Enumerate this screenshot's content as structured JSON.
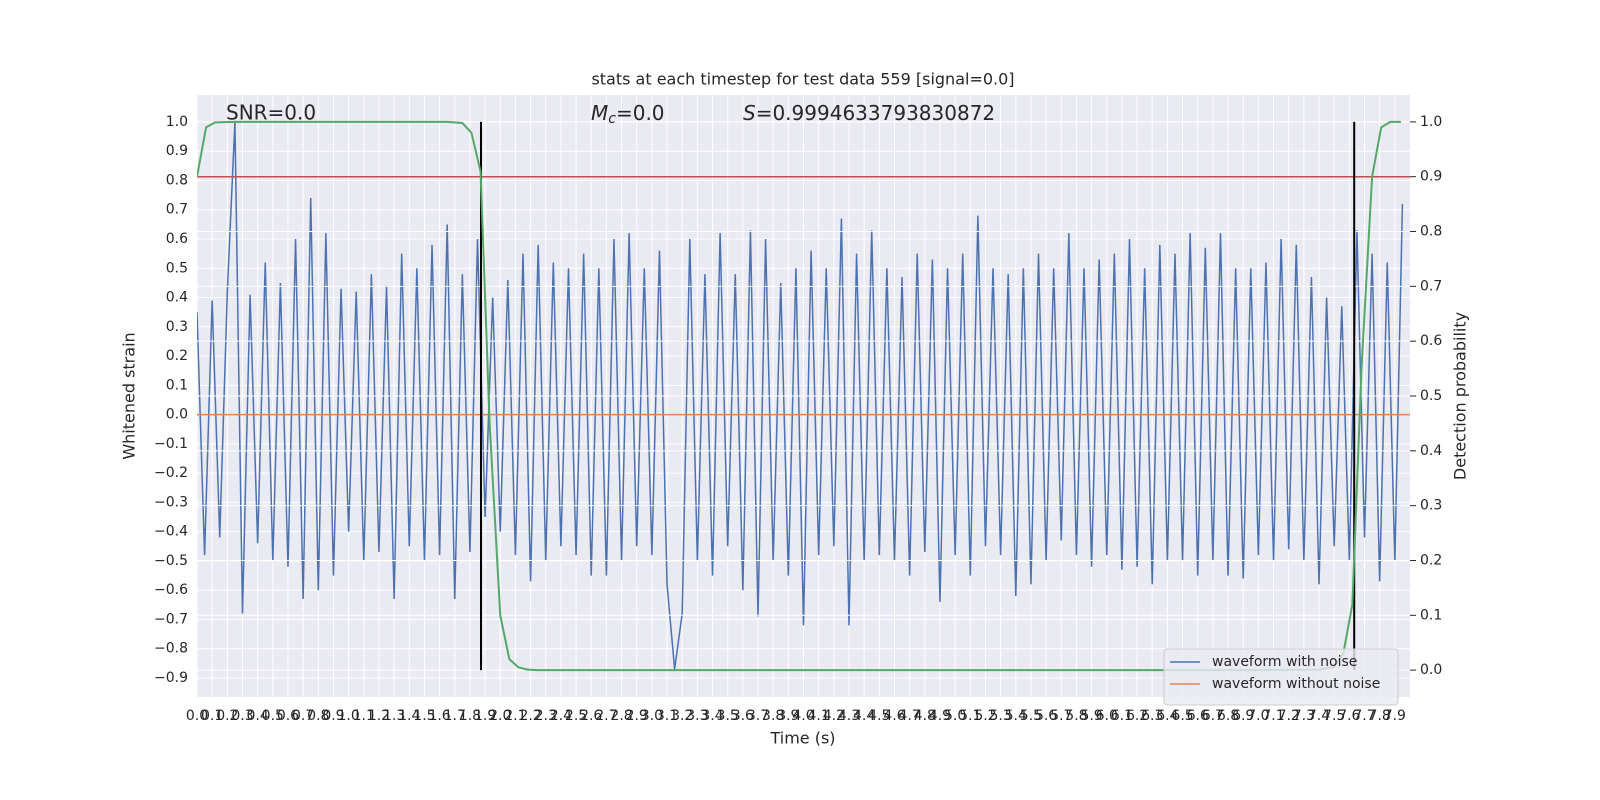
{
  "chart_data": {
    "type": "line",
    "title": "stats at each timestep for test data 559 [signal=0.0]",
    "xlabel": "Time (s)",
    "ylabel": "Whitened strain",
    "y2label": "Detection probability",
    "annotations": {
      "snr": "SNR=0.0",
      "mc": {
        "symbol": "M",
        "subscript": "c",
        "text": "=0.0"
      },
      "s": {
        "symbol": "S",
        "text": "=0.9994633793830872"
      }
    },
    "xlim": [
      0,
      8
    ],
    "ylim": [
      -0.965,
      1.092
    ],
    "y2lim": [
      -0.049,
      1.049
    ],
    "grid": true,
    "legend": "lower right",
    "xticks": [
      {
        "value": 0,
        "label": "0.0"
      },
      0.1,
      0.2,
      0.3,
      0.4,
      0.5,
      0.6,
      0.7,
      0.8,
      0.9,
      {
        "value": 1,
        "label": "1.0"
      },
      1.1,
      1.2,
      1.3,
      1.4,
      1.5,
      1.6,
      1.7,
      1.8,
      1.9,
      {
        "value": 2,
        "label": "2.0"
      },
      2.1,
      2.2,
      2.3,
      2.4,
      2.5,
      2.6,
      2.7,
      2.8,
      2.9,
      {
        "value": 3,
        "label": "3.0"
      },
      3.1,
      3.2,
      3.3,
      3.4,
      3.5,
      3.6,
      3.7,
      3.8,
      3.9,
      {
        "value": 4,
        "label": "4.0"
      },
      4.1,
      4.2,
      4.3,
      4.4,
      4.5,
      4.6,
      4.7,
      4.8,
      4.9,
      {
        "value": 5,
        "label": "5.0"
      },
      5.1,
      5.2,
      5.3,
      5.4,
      5.5,
      5.6,
      5.7,
      5.8,
      5.9,
      {
        "value": 6,
        "label": "6.0"
      },
      6.1,
      6.2,
      6.3,
      6.4,
      6.5,
      6.6,
      6.7,
      6.8,
      6.9,
      {
        "value": 7,
        "label": "7.0"
      },
      7.1,
      7.2,
      7.3,
      7.4,
      7.5,
      7.6,
      7.7,
      7.8,
      7.9
    ],
    "yticks": [
      {
        "value": 1,
        "label": "1.0"
      },
      0.9,
      0.8,
      0.7,
      0.6,
      0.5,
      0.4,
      0.3,
      0.2,
      0.1,
      {
        "value": 0,
        "label": "0.0"
      },
      {
        "value": -0.1,
        "label": "−0.1"
      },
      {
        "value": -0.2,
        "label": "−0.2"
      },
      {
        "value": -0.3,
        "label": "−0.3"
      },
      {
        "value": -0.4,
        "label": "−0.4"
      },
      {
        "value": -0.5,
        "label": "−0.5"
      },
      {
        "value": -0.6,
        "label": "−0.6"
      },
      {
        "value": -0.7,
        "label": "−0.7"
      },
      {
        "value": -0.8,
        "label": "−0.8"
      },
      {
        "value": -0.9,
        "label": "−0.9"
      }
    ],
    "y2ticks": [
      {
        "value": 0,
        "label": "0.0"
      },
      0.1,
      0.2,
      0.3,
      0.4,
      0.5,
      0.6,
      0.7,
      0.8,
      0.9,
      {
        "value": 1,
        "label": "1.0"
      }
    ],
    "threshold": 0.9,
    "threshold_color": "#c44e52",
    "vlines": [
      1.873,
      7.632
    ],
    "vline_span": [
      0,
      1
    ],
    "vline_color": "#000000",
    "series": [
      {
        "name": "waveform with noise",
        "color": "#4c72b0",
        "x": [
          0,
          0.05,
          0.1,
          0.15,
          0.2,
          0.25,
          0.3,
          0.35,
          0.4,
          0.45,
          0.5,
          0.55,
          0.6,
          0.65,
          0.7,
          0.75,
          0.8,
          0.85,
          0.9,
          0.95,
          1,
          1.05,
          1.1,
          1.15,
          1.2,
          1.25,
          1.3,
          1.35,
          1.4,
          1.45,
          1.5,
          1.55,
          1.6,
          1.65,
          1.7,
          1.75,
          1.8,
          1.85,
          1.9,
          1.95,
          2,
          2.05,
          2.1,
          2.15,
          2.2,
          2.25,
          2.3,
          2.35,
          2.4,
          2.45,
          2.5,
          2.55,
          2.6,
          2.65,
          2.7,
          2.75,
          2.8,
          2.85,
          2.9,
          2.95,
          3,
          3.05,
          3.1,
          3.15,
          3.2,
          3.25,
          3.3,
          3.35,
          3.4,
          3.45,
          3.5,
          3.55,
          3.6,
          3.65,
          3.7,
          3.75,
          3.8,
          3.85,
          3.9,
          3.95,
          4,
          4.05,
          4.1,
          4.15,
          4.2,
          4.25,
          4.3,
          4.35,
          4.4,
          4.45,
          4.5,
          4.55,
          4.6,
          4.65,
          4.7,
          4.75,
          4.8,
          4.85,
          4.9,
          4.95,
          5,
          5.05,
          5.1,
          5.15,
          5.2,
          5.25,
          5.3,
          5.35,
          5.4,
          5.45,
          5.5,
          5.55,
          5.6,
          5.65,
          5.7,
          5.75,
          5.8,
          5.85,
          5.9,
          5.95,
          6,
          6.05,
          6.1,
          6.15,
          6.2,
          6.25,
          6.3,
          6.35,
          6.4,
          6.45,
          6.5,
          6.55,
          6.6,
          6.65,
          6.7,
          6.75,
          6.8,
          6.85,
          6.9,
          6.95,
          7,
          7.05,
          7.1,
          7.15,
          7.2,
          7.25,
          7.3,
          7.35,
          7.4,
          7.45,
          7.5,
          7.55,
          7.6,
          7.65,
          7.7,
          7.75,
          7.8,
          7.85,
          7.9,
          7.95
        ],
        "values": [
          0.35,
          -0.48,
          0.39,
          -0.42,
          0.42,
          1.0,
          -0.68,
          0.41,
          -0.44,
          0.52,
          -0.5,
          0.45,
          -0.52,
          0.6,
          -0.63,
          0.74,
          -0.6,
          0.62,
          -0.55,
          0.43,
          -0.4,
          0.42,
          -0.5,
          0.48,
          -0.47,
          0.44,
          -0.63,
          0.55,
          -0.45,
          0.5,
          -0.5,
          0.58,
          -0.48,
          0.65,
          -0.63,
          0.48,
          -0.47,
          0.6,
          -0.35,
          0.4,
          -0.4,
          0.46,
          -0.48,
          0.55,
          -0.57,
          0.58,
          -0.5,
          0.52,
          -0.45,
          0.5,
          -0.48,
          0.55,
          -0.55,
          0.5,
          -0.55,
          0.6,
          -0.5,
          0.62,
          -0.45,
          0.5,
          -0.48,
          0.56,
          -0.58,
          -0.87,
          -0.68,
          0.6,
          -0.5,
          0.48,
          -0.55,
          0.62,
          -0.45,
          0.48,
          -0.6,
          0.63,
          -0.69,
          0.6,
          -0.5,
          0.45,
          -0.55,
          0.5,
          -0.72,
          0.56,
          -0.48,
          0.5,
          -0.45,
          0.67,
          -0.72,
          0.55,
          -0.5,
          0.63,
          -0.48,
          0.5,
          -0.5,
          0.47,
          -0.55,
          0.55,
          -0.47,
          0.53,
          -0.64,
          0.5,
          -0.48,
          0.55,
          -0.55,
          0.68,
          -0.45,
          0.5,
          -0.48,
          0.48,
          -0.62,
          0.5,
          -0.58,
          0.55,
          -0.5,
          0.5,
          -0.43,
          0.62,
          -0.48,
          0.5,
          -0.52,
          0.53,
          -0.48,
          0.55,
          -0.53,
          0.6,
          -0.52,
          0.5,
          -0.58,
          0.58,
          -0.5,
          0.55,
          -0.5,
          0.62,
          -0.55,
          0.57,
          -0.5,
          0.62,
          -0.55,
          0.5,
          -0.56,
          0.5,
          -0.48,
          0.52,
          -0.5,
          0.6,
          -0.46,
          0.58,
          -0.5,
          0.47,
          -0.58,
          0.4,
          -0.45,
          0.37,
          -0.5,
          0.63,
          -0.42,
          0.55,
          -0.57,
          0.52,
          -0.5,
          0.72
        ]
      },
      {
        "name": "waveform without noise",
        "color": "#dd8452",
        "x": [
          0,
          8
        ],
        "values": [
          0,
          0
        ]
      },
      {
        "color": "#55a868",
        "axis": "y2",
        "x": [
          0,
          0.06,
          0.12,
          0.25,
          0.5,
          1.0,
          1.5,
          1.65,
          1.75,
          1.81,
          1.87,
          1.93,
          2.0,
          2.06,
          2.12,
          2.18,
          2.25,
          2.5,
          3.0,
          4.0,
          5.0,
          6.0,
          7.0,
          7.4,
          7.5,
          7.56,
          7.62,
          7.68,
          7.75,
          7.81,
          7.87,
          7.94
        ],
        "values": [
          0.9,
          0.99,
          0.999,
          1.0,
          1.0,
          1.0,
          1.0,
          1.0,
          0.998,
          0.98,
          0.91,
          0.45,
          0.1,
          0.02,
          0.005,
          0.001,
          0,
          0,
          0,
          0,
          0,
          0,
          0,
          0.001,
          0.006,
          0.03,
          0.12,
          0.55,
          0.9,
          0.99,
          1.0,
          1.0
        ]
      }
    ]
  }
}
